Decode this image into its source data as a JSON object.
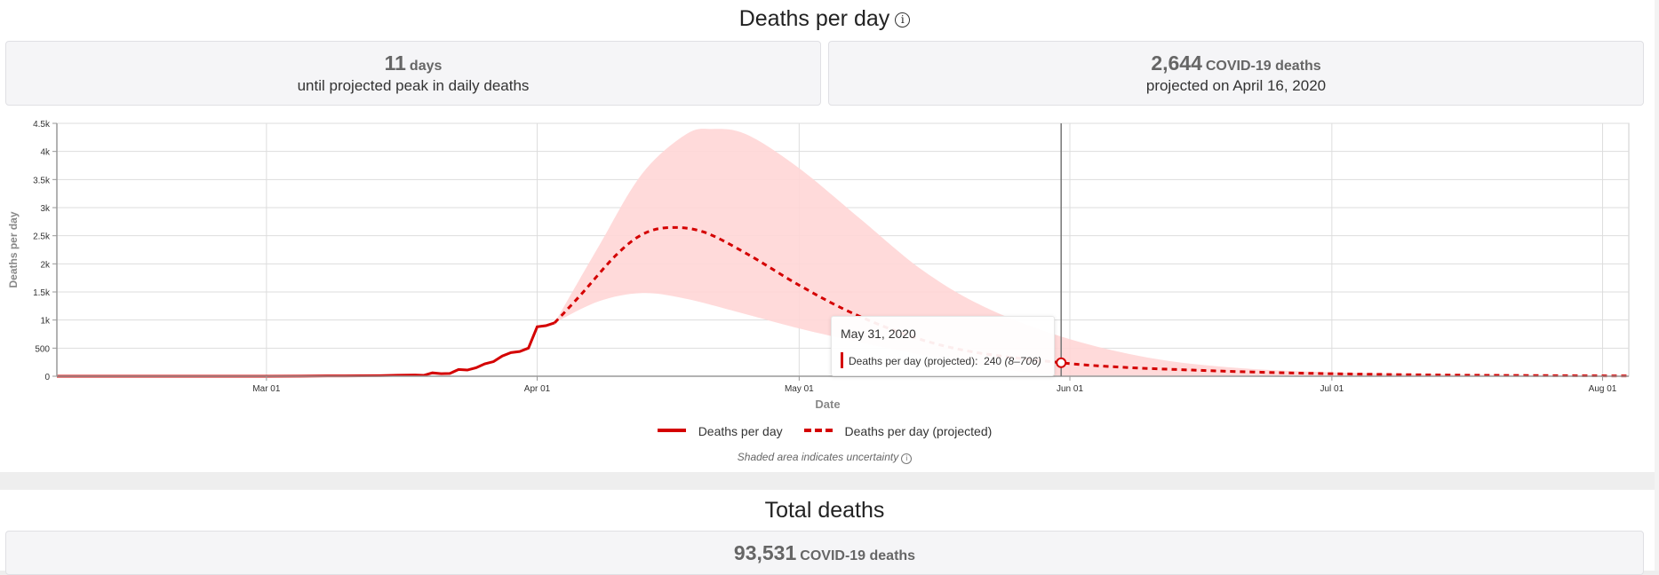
{
  "deaths_per_day": {
    "title": "Deaths per day",
    "info_icon": "info-icon",
    "peak_card": {
      "value": "11",
      "unit": "days",
      "caption": "until projected peak in daily deaths"
    },
    "deaths_card": {
      "value": "2,644",
      "unit": "COVID-19 deaths",
      "caption": "projected on April 16, 2020"
    },
    "legend": {
      "actual": "Deaths per day",
      "projected": "Deaths per day (projected)"
    },
    "note": "Shaded area indicates uncertainty",
    "tooltip": {
      "date": "May 31, 2020",
      "series": "Deaths per day (projected):",
      "value": "240",
      "range": "(8–706)"
    }
  },
  "total_deaths": {
    "title": "Total deaths",
    "card": {
      "value": "93,531",
      "unit": "COVID-19 deaths"
    }
  },
  "colors": {
    "series": "#d40000",
    "band": "#ffd6d6",
    "grid": "#dddddd"
  },
  "chart_data": {
    "type": "line",
    "xlabel": "Date",
    "ylabel": "Deaths per day",
    "xlim": [
      "2020-02-06",
      "2020-08-04"
    ],
    "ylim": [
      0,
      4500
    ],
    "x_ticks": [
      {
        "date": "2020-03-01",
        "label": "Mar 01"
      },
      {
        "date": "2020-04-01",
        "label": "Apr 01"
      },
      {
        "date": "2020-05-01",
        "label": "May 01"
      },
      {
        "date": "2020-06-01",
        "label": "Jun 01"
      },
      {
        "date": "2020-07-01",
        "label": "Jul 01"
      },
      {
        "date": "2020-08-01",
        "label": "Aug 01"
      }
    ],
    "y_ticks": [
      {
        "value": 0,
        "label": "0"
      },
      {
        "value": 500,
        "label": "500"
      },
      {
        "value": 1000,
        "label": "1k"
      },
      {
        "value": 1500,
        "label": "1.5k"
      },
      {
        "value": 2000,
        "label": "2k"
      },
      {
        "value": 2500,
        "label": "2.5k"
      },
      {
        "value": 3000,
        "label": "3k"
      },
      {
        "value": 3500,
        "label": "3.5k"
      },
      {
        "value": 4000,
        "label": "4k"
      },
      {
        "value": 4500,
        "label": "4.5k"
      }
    ],
    "grid": true,
    "legend_position": "bottom",
    "series": [
      {
        "name": "Deaths per day",
        "style": "solid",
        "points": [
          [
            "2020-02-06",
            0
          ],
          [
            "2020-03-01",
            0
          ],
          [
            "2020-03-05",
            2
          ],
          [
            "2020-03-08",
            5
          ],
          [
            "2020-03-10",
            6
          ],
          [
            "2020-03-14",
            10
          ],
          [
            "2020-03-16",
            18
          ],
          [
            "2020-03-18",
            22
          ],
          [
            "2020-03-19",
            15
          ],
          [
            "2020-03-20",
            60
          ],
          [
            "2020-03-21",
            45
          ],
          [
            "2020-03-22",
            50
          ],
          [
            "2020-03-23",
            120
          ],
          [
            "2020-03-24",
            110
          ],
          [
            "2020-03-25",
            150
          ],
          [
            "2020-03-26",
            220
          ],
          [
            "2020-03-27",
            260
          ],
          [
            "2020-03-28",
            360
          ],
          [
            "2020-03-29",
            420
          ],
          [
            "2020-03-30",
            440
          ],
          [
            "2020-03-31",
            500
          ],
          [
            "2020-04-01",
            880
          ],
          [
            "2020-04-02",
            900
          ],
          [
            "2020-04-03",
            950
          ]
        ]
      },
      {
        "name": "Deaths per day (projected)",
        "style": "dashed",
        "points": [
          [
            "2020-04-03",
            950
          ],
          [
            "2020-04-06",
            1450
          ],
          [
            "2020-04-10",
            2150
          ],
          [
            "2020-04-13",
            2520
          ],
          [
            "2020-04-16",
            2644
          ],
          [
            "2020-04-20",
            2570
          ],
          [
            "2020-04-25",
            2180
          ],
          [
            "2020-05-01",
            1620
          ],
          [
            "2020-05-07",
            1130
          ],
          [
            "2020-05-14",
            700
          ],
          [
            "2020-05-21",
            430
          ],
          [
            "2020-05-31",
            240
          ],
          [
            "2020-06-07",
            160
          ],
          [
            "2020-06-15",
            110
          ],
          [
            "2020-06-22",
            75
          ],
          [
            "2020-07-01",
            45
          ],
          [
            "2020-07-15",
            20
          ],
          [
            "2020-08-04",
            5
          ]
        ]
      }
    ],
    "uncertainty_band": {
      "upper": [
        [
          "2020-04-03",
          950
        ],
        [
          "2020-04-08",
          2300
        ],
        [
          "2020-04-13",
          3600
        ],
        [
          "2020-04-18",
          4300
        ],
        [
          "2020-04-21",
          4400
        ],
        [
          "2020-04-25",
          4300
        ],
        [
          "2020-05-01",
          3700
        ],
        [
          "2020-05-08",
          2800
        ],
        [
          "2020-05-15",
          1900
        ],
        [
          "2020-05-22",
          1250
        ],
        [
          "2020-05-31",
          706
        ],
        [
          "2020-06-10",
          330
        ],
        [
          "2020-06-20",
          150
        ],
        [
          "2020-07-01",
          70
        ],
        [
          "2020-07-15",
          30
        ],
        [
          "2020-08-04",
          10
        ]
      ],
      "lower": [
        [
          "2020-04-03",
          950
        ],
        [
          "2020-04-08",
          1330
        ],
        [
          "2020-04-13",
          1480
        ],
        [
          "2020-04-18",
          1380
        ],
        [
          "2020-04-25",
          1100
        ],
        [
          "2020-05-01",
          850
        ],
        [
          "2020-05-08",
          600
        ],
        [
          "2020-05-15",
          380
        ],
        [
          "2020-05-22",
          180
        ],
        [
          "2020-05-31",
          8
        ],
        [
          "2020-06-10",
          2
        ],
        [
          "2020-08-04",
          0
        ]
      ]
    },
    "highlight": {
      "date": "2020-05-31",
      "value": 240
    }
  }
}
